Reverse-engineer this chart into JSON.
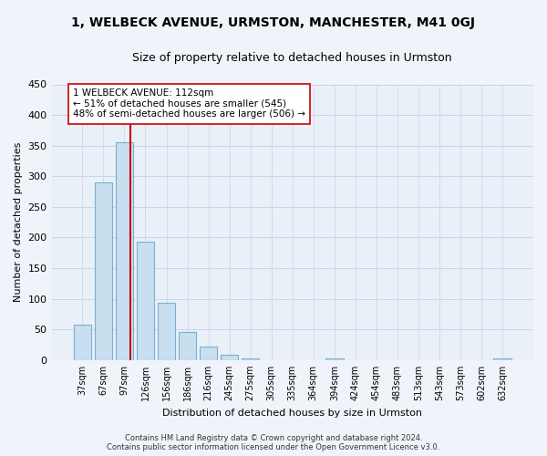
{
  "title": "1, WELBECK AVENUE, URMSTON, MANCHESTER, M41 0GJ",
  "subtitle": "Size of property relative to detached houses in Urmston",
  "xlabel": "Distribution of detached houses by size in Urmston",
  "ylabel": "Number of detached properties",
  "bar_labels": [
    "37sqm",
    "67sqm",
    "97sqm",
    "126sqm",
    "156sqm",
    "186sqm",
    "216sqm",
    "245sqm",
    "275sqm",
    "305sqm",
    "335sqm",
    "364sqm",
    "394sqm",
    "424sqm",
    "454sqm",
    "483sqm",
    "513sqm",
    "543sqm",
    "573sqm",
    "602sqm",
    "632sqm"
  ],
  "bar_values": [
    58,
    290,
    356,
    193,
    93,
    46,
    22,
    8,
    3,
    0,
    0,
    0,
    2,
    0,
    0,
    0,
    0,
    0,
    0,
    0,
    2
  ],
  "bar_color": "#c8dff0",
  "bar_edge_color": "#7ab0cf",
  "vline_color": "#cc0000",
  "annotation_text": "1 WELBECK AVENUE: 112sqm\n← 51% of detached houses are smaller (545)\n48% of semi-detached houses are larger (506) →",
  "annotation_box_color": "#ffffff",
  "annotation_box_edge_color": "#cc0000",
  "ylim": [
    0,
    450
  ],
  "yticks": [
    0,
    50,
    100,
    150,
    200,
    250,
    300,
    350,
    400,
    450
  ],
  "footer_line1": "Contains HM Land Registry data © Crown copyright and database right 2024.",
  "footer_line2": "Contains public sector information licensed under the Open Government Licence v3.0.",
  "bg_color": "#f0f4fa",
  "plot_bg_color": "#eaf0f8",
  "grid_color": "#c8d4e8"
}
